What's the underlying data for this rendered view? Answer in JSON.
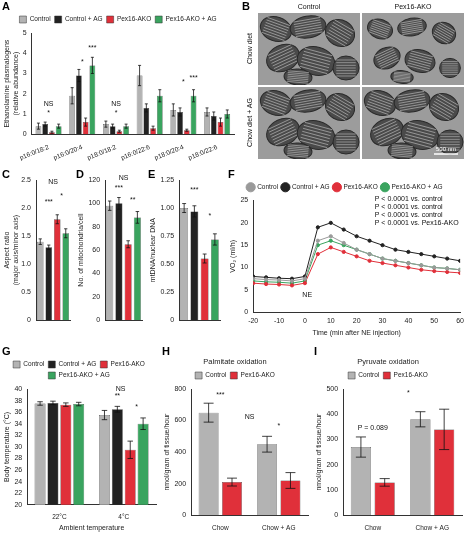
{
  "chart_data": [
    {
      "panel": "A",
      "type": "bar",
      "y_label": [
        "Ethanolamine plasmalogens",
        "(relative abundance)"
      ],
      "categories": [
        "p16:0/18:2",
        "p16:0/20:4",
        "p18:0/18:2",
        "p16:0/22:6",
        "p18:0/20:4",
        "p18:0/22:6"
      ],
      "series": [
        {
          "name": "Control",
          "color": "#b3b3b3",
          "values": [
            0.4,
            1.9,
            0.5,
            2.9,
            1.2,
            1.1
          ],
          "errors": [
            0.15,
            0.4,
            0.15,
            0.5,
            0.3,
            0.2
          ]
        },
        {
          "name": "Control + AG",
          "color": "#222222",
          "values": [
            0.5,
            2.9,
            0.4,
            1.3,
            1.1,
            0.9
          ],
          "errors": [
            0.1,
            0.3,
            0.1,
            0.2,
            0.2,
            0.2
          ]
        },
        {
          "name": "Pex16-AKO",
          "color": "#e0303a",
          "values": [
            0.1,
            0.6,
            0.15,
            0.3,
            0.2,
            0.6
          ],
          "errors": [
            0.05,
            0.2,
            0.05,
            0.1,
            0.05,
            0.2
          ]
        },
        {
          "name": "Pex16-AKO + AG",
          "color": "#3aa45f",
          "values": [
            0.4,
            3.4,
            0.4,
            1.9,
            1.9,
            1.0
          ],
          "errors": [
            0.1,
            0.4,
            0.1,
            0.3,
            0.3,
            0.2
          ]
        }
      ],
      "ylim": [
        0,
        5
      ],
      "yticks": [
        0,
        1,
        2,
        3,
        4,
        5
      ],
      "grid": false,
      "legend": "top",
      "annotations": [
        {
          "text": "NS",
          "x": 0,
          "y": 1.3
        },
        {
          "text": "*",
          "x": 0,
          "y": 0.85
        },
        {
          "text": "*",
          "x": 1,
          "y": 3.4
        },
        {
          "text": "***",
          "x": 1.3,
          "y": 4.1
        },
        {
          "text": "NS",
          "x": 2,
          "y": 1.3
        },
        {
          "text": "*",
          "x": 2,
          "y": 0.85
        },
        {
          "text": "*",
          "x": 4,
          "y": 2.4
        },
        {
          "text": "***",
          "x": 4.3,
          "y": 2.6
        }
      ]
    },
    {
      "panel": "C",
      "type": "bar",
      "y_label": [
        "Aspect ratio",
        "(major axis/minor axis)"
      ],
      "categories": [
        null,
        null,
        null,
        null
      ],
      "values": [
        1.4,
        1.3,
        1.8,
        1.55
      ],
      "errors": [
        0.05,
        0.04,
        0.08,
        0.08
      ],
      "colors": [
        "#b3b3b3",
        "#222222",
        "#e0303a",
        "#3aa45f"
      ],
      "ylim": [
        0,
        2.5
      ],
      "yticks": [
        0,
        0.5,
        {
          "value": 1,
          "label": "1.0"
        },
        1.5,
        {
          "value": 2,
          "label": "2.0"
        },
        2.5
      ],
      "grid": false,
      "annotations": [
        {
          "text": "***",
          "x": 1,
          "y": 2.05
        },
        {
          "text": "NS",
          "x": 1.5,
          "y": 2.4
        },
        {
          "text": "*",
          "x": 2.5,
          "y": 2.15
        }
      ]
    },
    {
      "panel": "D",
      "type": "bar",
      "y_label": "No. of mitochondria/cell",
      "categories": [
        null,
        null,
        null,
        null
      ],
      "values": [
        98,
        100,
        65,
        88
      ],
      "errors": [
        4,
        5,
        3,
        5
      ],
      "colors": [
        "#b3b3b3",
        "#222222",
        "#e0303a",
        "#3aa45f"
      ],
      "ylim": [
        0,
        120
      ],
      "yticks": [
        0,
        20,
        40,
        60,
        80,
        100,
        120
      ],
      "grid": false,
      "annotations": [
        {
          "text": "NS",
          "x": 1.5,
          "y": 119
        },
        {
          "text": "***",
          "x": 1,
          "y": 110
        },
        {
          "text": "**",
          "x": 2.5,
          "y": 100
        }
      ]
    },
    {
      "panel": "E",
      "type": "bar",
      "y_label": "mtDNA/nuclear DNA",
      "categories": [
        null,
        null,
        null,
        null
      ],
      "values": [
        1.0,
        0.97,
        0.55,
        0.72
      ],
      "errors": [
        0.04,
        0.05,
        0.04,
        0.05
      ],
      "colors": [
        "#b3b3b3",
        "#222222",
        "#e0303a",
        "#3aa45f"
      ],
      "ylim": [
        0,
        1.25
      ],
      "yticks": [
        0,
        0.25,
        {
          "value": 0.5,
          "label": "0.50"
        },
        0.75,
        {
          "value": 1,
          "label": "1.00"
        },
        1.25
      ],
      "grid": false,
      "annotations": [
        {
          "text": "***",
          "x": 1,
          "y": 1.13
        },
        {
          "text": "*",
          "x": 2.5,
          "y": 0.9
        }
      ]
    },
    {
      "panel": "F",
      "type": "line",
      "x_label": "Time (min after NE injection)",
      "y_label": "VO₂ (ml/h)",
      "x": [
        -20,
        -15,
        -10,
        -5,
        0,
        5,
        10,
        15,
        20,
        25,
        30,
        35,
        40,
        45,
        50,
        55,
        60
      ],
      "series": [
        {
          "name": "Control",
          "color": "#9a9a9a",
          "marker": "circle",
          "values": [
            7.5,
            7.3,
            7.2,
            7.0,
            7.5,
            16,
            17,
            15.5,
            14,
            13,
            12,
            11.5,
            11,
            10.5,
            10,
            9.8,
            9.5
          ]
        },
        {
          "name": "Control + AG",
          "color": "#222222",
          "marker": "circle",
          "values": [
            8,
            7.8,
            7.6,
            7.5,
            8,
            19,
            20,
            18.5,
            17,
            16,
            15,
            14,
            13.5,
            13,
            12.5,
            12,
            11.5
          ]
        },
        {
          "name": "Pex16-AKO",
          "color": "#e0303a",
          "marker": "circle",
          "values": [
            6.5,
            6.3,
            6.2,
            6.0,
            6.5,
            13,
            14.5,
            13.5,
            12.5,
            11.5,
            11,
            10.5,
            10,
            9.5,
            9.2,
            9,
            8.8
          ]
        },
        {
          "name": "Pex16-AKO + AG",
          "color": "#3aa45f",
          "marker": "circle",
          "values": [
            7,
            6.8,
            6.7,
            6.5,
            7,
            15,
            16,
            15,
            14,
            13,
            12,
            11.5,
            11,
            10.5,
            10,
            9.8,
            9.5
          ]
        }
      ],
      "xlim": [
        -20,
        60
      ],
      "xticks": [
        -20,
        -10,
        0,
        10,
        20,
        30,
        40,
        50,
        60
      ],
      "ylim": [
        0,
        25
      ],
      "yticks": [
        0,
        5,
        10,
        15,
        20,
        25
      ],
      "grid": false,
      "legend": "top",
      "annotations": [
        {
          "text": "P < 0.0001 vs. control",
          "x": 27,
          "y": 24.5
        },
        {
          "text": "P < 0.0001 vs. control",
          "x": 27,
          "y": 22.7
        },
        {
          "text": "P < 0.0001 vs. control",
          "x": 27,
          "y": 20.9
        },
        {
          "text": "P < 0.0001 vs. Pex16-AKO",
          "x": 27,
          "y": 19.1
        },
        {
          "text": "NE",
          "x": -1,
          "y": 3
        }
      ]
    },
    {
      "panel": "G",
      "type": "bar",
      "x_label": "Ambient temperature",
      "y_label": "Body temperature (°C)",
      "categories": [
        "22°C",
        "4°C"
      ],
      "series": [
        {
          "name": "Control",
          "color": "#b3b3b3",
          "values": [
            37.5,
            35.5
          ],
          "errors": [
            0.3,
            0.8
          ]
        },
        {
          "name": "Control + AG",
          "color": "#222222",
          "values": [
            37.6,
            36.5
          ],
          "errors": [
            0.3,
            0.5
          ]
        },
        {
          "name": "Pex16-AKO",
          "color": "#e0303a",
          "values": [
            37.3,
            29.5
          ],
          "errors": [
            0.3,
            1.5
          ]
        },
        {
          "name": "Pex16-AKO + AG",
          "color": "#3aa45f",
          "values": [
            37.4,
            34
          ],
          "errors": [
            0.3,
            1.0
          ]
        }
      ],
      "ylim": [
        20,
        40
      ],
      "yticks": [
        20,
        22,
        24,
        26,
        28,
        30,
        32,
        34,
        36,
        38,
        40
      ],
      "grid": false,
      "legend": "top",
      "annotations": [
        {
          "text": "NS",
          "x": 0.95,
          "y": 39.4
        },
        {
          "text": "**",
          "x": 0.9,
          "y": 38.2
        },
        {
          "text": "*",
          "x": 1.2,
          "y": 36.2
        }
      ]
    },
    {
      "panel": "H",
      "type": "bar",
      "title": "Palmitate oxidation",
      "y_label": "nmol/gram of tissue/hour",
      "categories": [
        "Chow",
        "Chow + AG"
      ],
      "series": [
        {
          "name": "Control",
          "color": "#b3b3b3",
          "values": [
            650,
            450
          ],
          "errors": [
            60,
            50
          ]
        },
        {
          "name": "Pex16-AKO",
          "color": "#e0303a",
          "values": [
            210,
            220
          ],
          "errors": [
            25,
            50
          ]
        }
      ],
      "ylim": [
        0,
        800
      ],
      "yticks": [
        0,
        200,
        400,
        600,
        800
      ],
      "grid": false,
      "legend": "top",
      "annotations": [
        {
          "text": "***",
          "x": 0,
          "y": 740
        },
        {
          "text": "NS",
          "x": 0.5,
          "y": 600
        },
        {
          "text": "*",
          "x": 1,
          "y": 540
        }
      ]
    },
    {
      "panel": "I",
      "type": "bar",
      "title": "Pyruvate oxidation",
      "y_label": "nmol/gram of tissue/hour",
      "categories": [
        "Chow",
        "Chow + AG"
      ],
      "series": [
        {
          "name": "Control",
          "color": "#b3b3b3",
          "values": [
            270,
            380
          ],
          "errors": [
            40,
            30
          ]
        },
        {
          "name": "Pex16-AKO",
          "color": "#e0303a",
          "values": [
            130,
            340
          ],
          "errors": [
            15,
            80
          ]
        }
      ],
      "ylim": [
        0,
        500
      ],
      "yticks": [
        0,
        100,
        200,
        300,
        400,
        500
      ],
      "grid": false,
      "legend": "top",
      "annotations": [
        {
          "text": "P = 0.089",
          "x": 0,
          "y": 330
        },
        {
          "text": "*",
          "x": 0.6,
          "y": 470
        }
      ]
    }
  ],
  "micrograph": {
    "panel": "B",
    "columns": [
      "Control",
      "Pex16-AKO"
    ],
    "rows": [
      "Chow diet",
      "Chow diet + AG"
    ],
    "scale_bar": "500 nm"
  }
}
